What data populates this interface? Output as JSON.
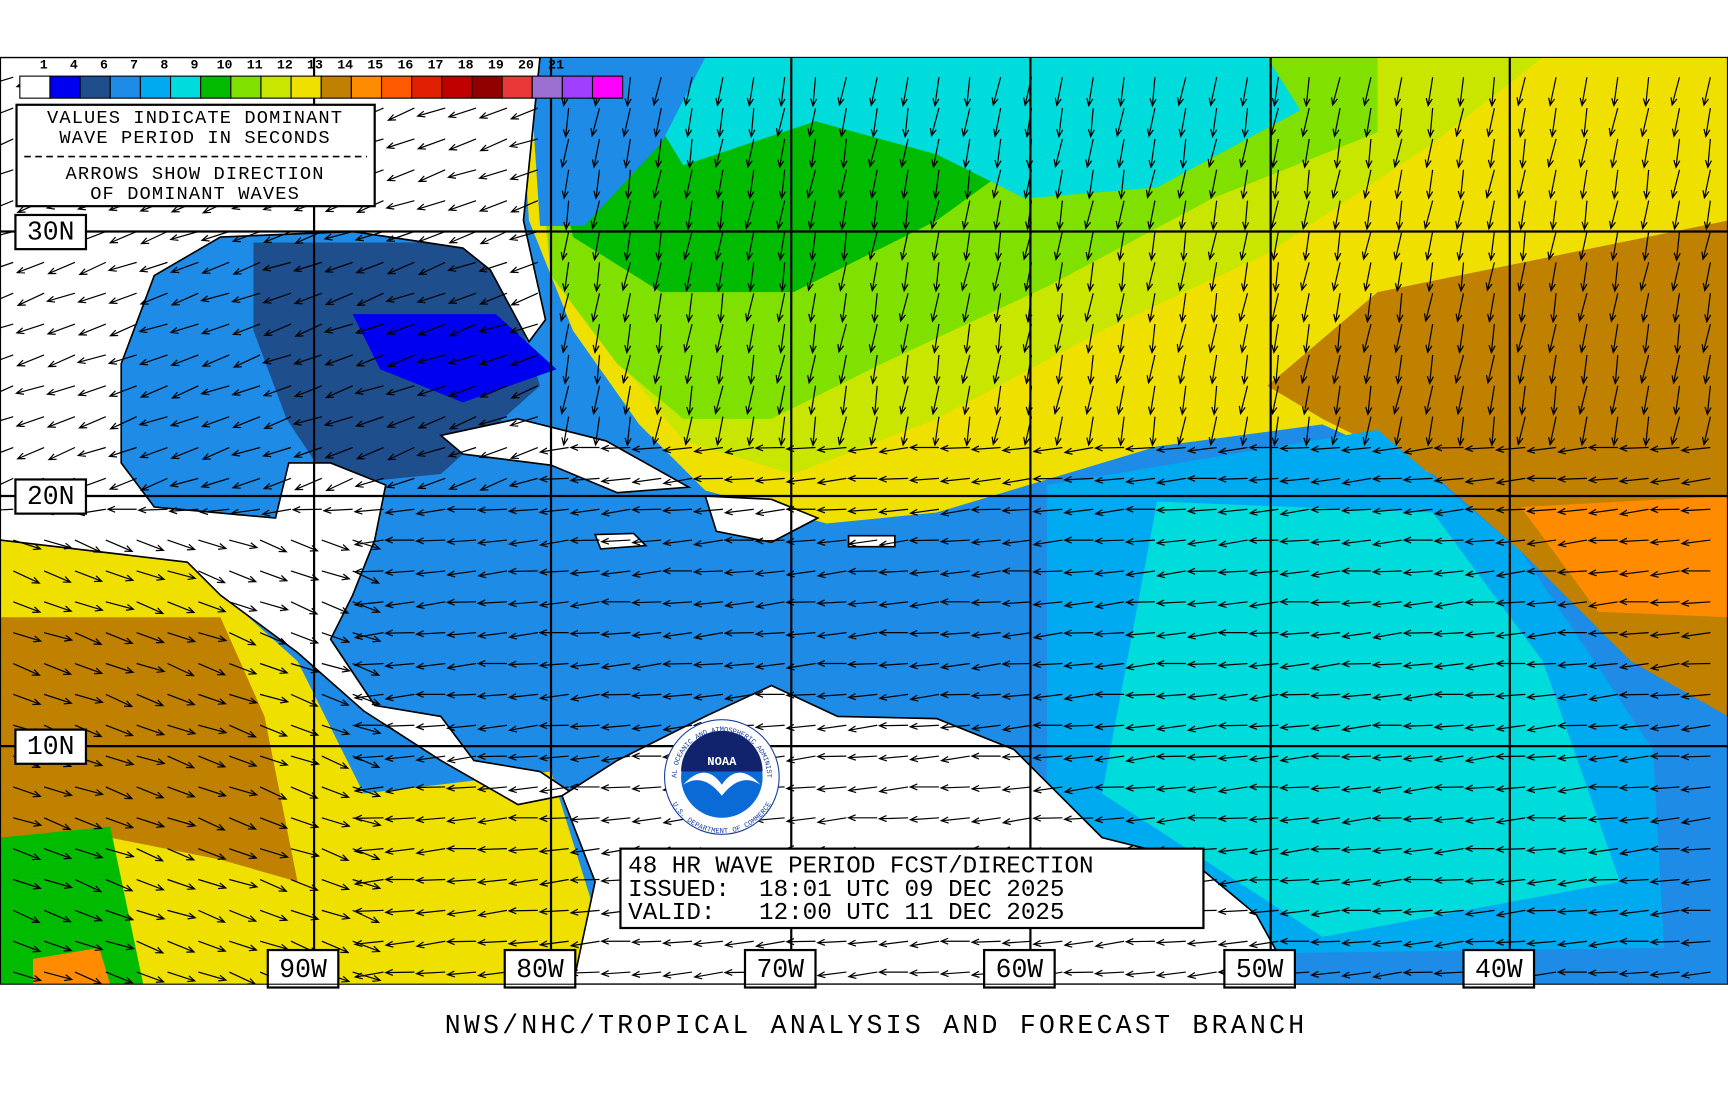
{
  "legend": {
    "labels": [
      "1",
      "4",
      "6",
      "7",
      "8",
      "9",
      "10",
      "11",
      "12",
      "13",
      "14",
      "15",
      "16",
      "17",
      "18",
      "19",
      "20",
      "21"
    ],
    "colors": [
      "#ffffff",
      "#0000f0",
      "#1f4e8c",
      "#1e8ce6",
      "#00aaf0",
      "#00dcdc",
      "#00bb00",
      "#80e000",
      "#c8e600",
      "#f0e000",
      "#c08000",
      "#ff8c00",
      "#ff5a00",
      "#e02000",
      "#c00000",
      "#900000",
      "#e83838",
      "#9a6fd0",
      "#a040ff",
      "#ff00ff"
    ]
  },
  "legend_note": {
    "lines": [
      "VALUES INDICATE DOMINANT",
      "WAVE PERIOD IN SECONDS",
      "ARROWS SHOW DIRECTION",
      "OF DOMINANT WAVES"
    ]
  },
  "latitude_labels": [
    "30N",
    "20N",
    "10N"
  ],
  "longitude_labels": [
    "90W",
    "80W",
    "70W",
    "60W",
    "50W",
    "40W"
  ],
  "forecast_box": {
    "lines": [
      "48 HR WAVE PERIOD FCST/DIRECTION",
      "ISSUED:  18:01 UTC 09 DEC 2025",
      "VALID:   12:00 UTC 11 DEC 2025"
    ]
  },
  "logo": {
    "text": "NOAA",
    "ring_top": "NATIONAL OCEANIC AND ATMOSPHERIC ADMINISTRATION",
    "ring_bottom": "U.S. DEPARTMENT OF COMMERCE"
  },
  "footer": "NWS/NHC/TROPICAL ANALYSIS AND FORECAST BRANCH"
}
